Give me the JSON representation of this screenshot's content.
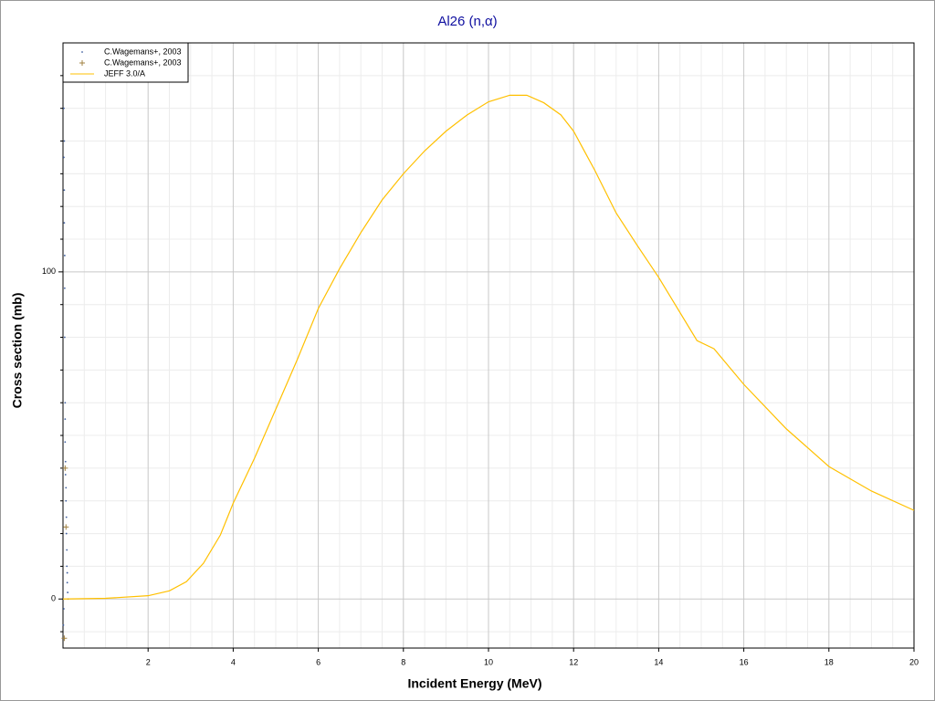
{
  "chart_data": {
    "type": "line",
    "title": "Al26 (n,α)",
    "x_label": "Incident Energy (MeV)",
    "y_label": "Cross section (mb)",
    "xlim": [
      0,
      20
    ],
    "ylim": [
      -15,
      170
    ],
    "xticks": [
      2,
      4,
      6,
      8,
      10,
      12,
      14,
      16,
      18,
      20
    ],
    "yticks": [
      0,
      100
    ],
    "minor_xticks": [
      0.5,
      1,
      1.5,
      2.5,
      3,
      3.5,
      4.5,
      5,
      5.5,
      6.5,
      7,
      7.5,
      8.5,
      9,
      9.5,
      10.5,
      11,
      11.5,
      12.5,
      13,
      13.5,
      14.5,
      15,
      15.5,
      16.5,
      17,
      17.5,
      18.5,
      19,
      19.5
    ],
    "minor_yticks": [
      -10,
      10,
      20,
      30,
      40,
      50,
      60,
      70,
      80,
      90,
      110,
      120,
      130,
      140,
      150,
      160
    ],
    "grid": true,
    "legend": "top-left",
    "series": [
      {
        "name": "C.Wagemans+, 2003",
        "color": "#4060a0",
        "marker": "dot",
        "x": [
          0.01,
          0.02,
          0.02,
          0.03,
          0.03,
          0.04,
          0.04,
          0.05,
          0.05,
          0.05,
          0.06,
          0.06,
          0.07,
          0.07,
          0.08,
          0.08,
          0.09,
          0.09,
          0.1,
          0.1,
          0.11,
          0.12,
          0.02,
          0.03,
          0.04
        ],
        "values": [
          -8,
          -3,
          150,
          140,
          115,
          95,
          80,
          60,
          55,
          48,
          42,
          38,
          34,
          30,
          25,
          20,
          15,
          10,
          8,
          5,
          2,
          0,
          135,
          125,
          105
        ]
      },
      {
        "name": "C.Wagemans+, 2003",
        "color": "#a08040",
        "marker": "plus",
        "x": [
          0.03,
          0.05,
          0.07
        ],
        "values": [
          -12,
          40,
          22
        ]
      },
      {
        "name": "JEFF 3.0/A",
        "color": "#ffc000",
        "marker": "line",
        "x": [
          0,
          1,
          2,
          2.5,
          2.9,
          3.3,
          3.7,
          4,
          4.5,
          5,
          5.5,
          6,
          6.5,
          7,
          7.5,
          8,
          8.5,
          9,
          9.5,
          10,
          10.5,
          10.9,
          11.3,
          11.7,
          12,
          12.5,
          13,
          13.5,
          14,
          14.9,
          15.3,
          16,
          17,
          18,
          19,
          20
        ],
        "values": [
          0,
          0.2,
          1,
          2.5,
          5.3,
          10.9,
          19.6,
          29.3,
          43,
          58,
          73,
          88.8,
          101,
          112,
          122,
          130,
          137,
          143,
          148,
          152,
          154,
          154,
          151.7,
          148,
          143,
          131,
          118,
          108,
          98.3,
          79,
          76.5,
          65.6,
          52,
          40.5,
          33,
          27.1
        ]
      }
    ]
  }
}
